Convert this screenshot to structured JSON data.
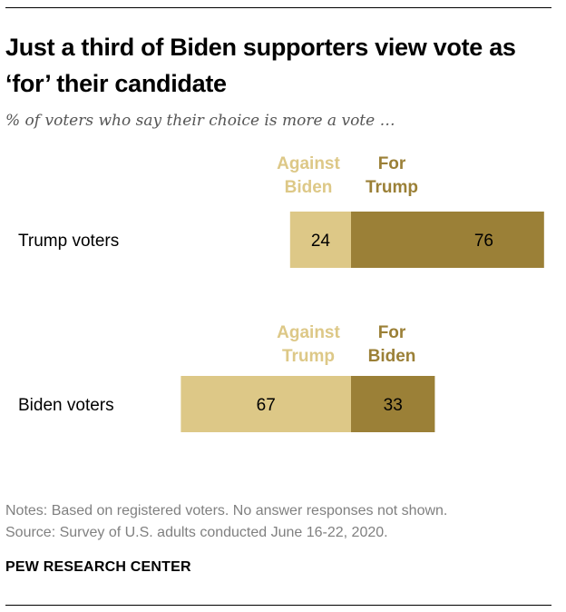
{
  "title": "Just a third of Biden supporters view vote as ‘for’ their candidate",
  "subtitle": "% of voters who say their choice is more a vote …",
  "chart_data": {
    "type": "bar",
    "orientation": "horizontal-diverging",
    "categories": [
      "Trump voters",
      "Biden voters"
    ],
    "series": [
      {
        "name": "Against",
        "values": [
          24,
          67
        ]
      },
      {
        "name": "For",
        "values": [
          76,
          33
        ]
      }
    ],
    "group_headers": [
      [
        "Against Biden",
        "For Trump"
      ],
      [
        "Against Trump",
        "For Biden"
      ]
    ],
    "colors": {
      "against": "#ddc887",
      "for": "#9b8037"
    },
    "grid": false
  },
  "notes": "Notes: Based on registered voters. No answer responses not shown.",
  "source": "Source: Survey of U.S. adults conducted June 16-22, 2020.",
  "credit": "PEW RESEARCH CENTER"
}
